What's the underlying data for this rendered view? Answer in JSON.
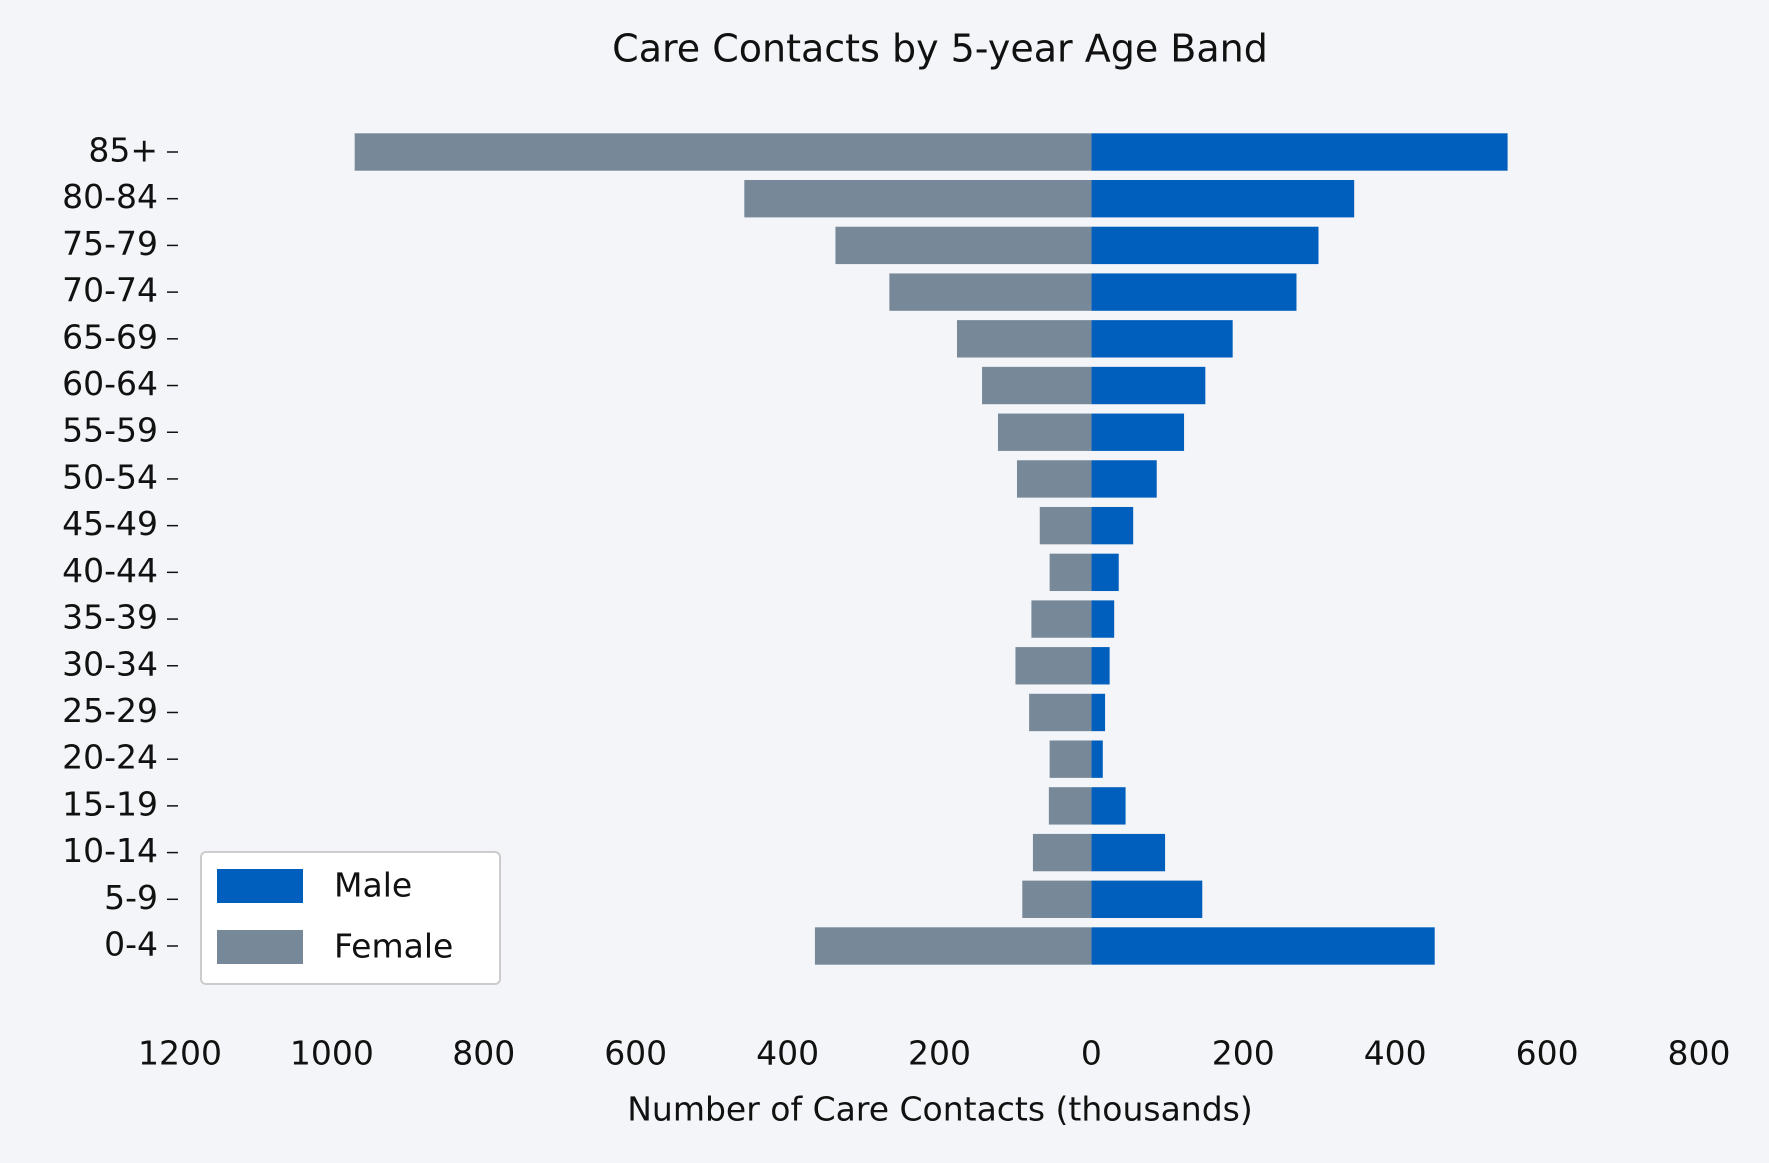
{
  "chart_data": {
    "type": "bar",
    "orientation": "horizontal",
    "stacked_diverging": true,
    "title": "Care Contacts by 5-year Age Band",
    "x_label": "Number of Care Contacts (thousands)",
    "categories": [
      "0-4",
      "5-9",
      "10-14",
      "15-19",
      "20-24",
      "25-29",
      "30-34",
      "35-39",
      "40-44",
      "45-49",
      "50-54",
      "55-59",
      "60-64",
      "65-69",
      "70-74",
      "75-79",
      "80-84",
      "85+"
    ],
    "series": [
      {
        "name": "Male",
        "color": "#005ebd",
        "values": [
          452,
          146,
          97,
          45,
          15,
          18,
          24,
          30,
          36,
          55,
          86,
          122,
          150,
          186,
          270,
          299,
          346,
          548
        ]
      },
      {
        "name": "Female",
        "color": "#778899",
        "values": [
          -364,
          -91,
          -77,
          -56,
          -55,
          -82,
          -100,
          -79,
          -55,
          -68,
          -98,
          -123,
          -144,
          -177,
          -266,
          -337,
          -457,
          -970
        ]
      }
    ],
    "xlim": [
      -1200,
      800
    ],
    "xticks": [
      {
        "value": -1200,
        "label": "1200"
      },
      {
        "value": -1000,
        "label": "1000"
      },
      {
        "value": -800,
        "label": "800"
      },
      {
        "value": -600,
        "label": "600"
      },
      {
        "value": -400,
        "label": "400"
      },
      {
        "value": -200,
        "label": "200"
      },
      0,
      200,
      400,
      600,
      800
    ],
    "legend": "lower left",
    "grid": false
  }
}
